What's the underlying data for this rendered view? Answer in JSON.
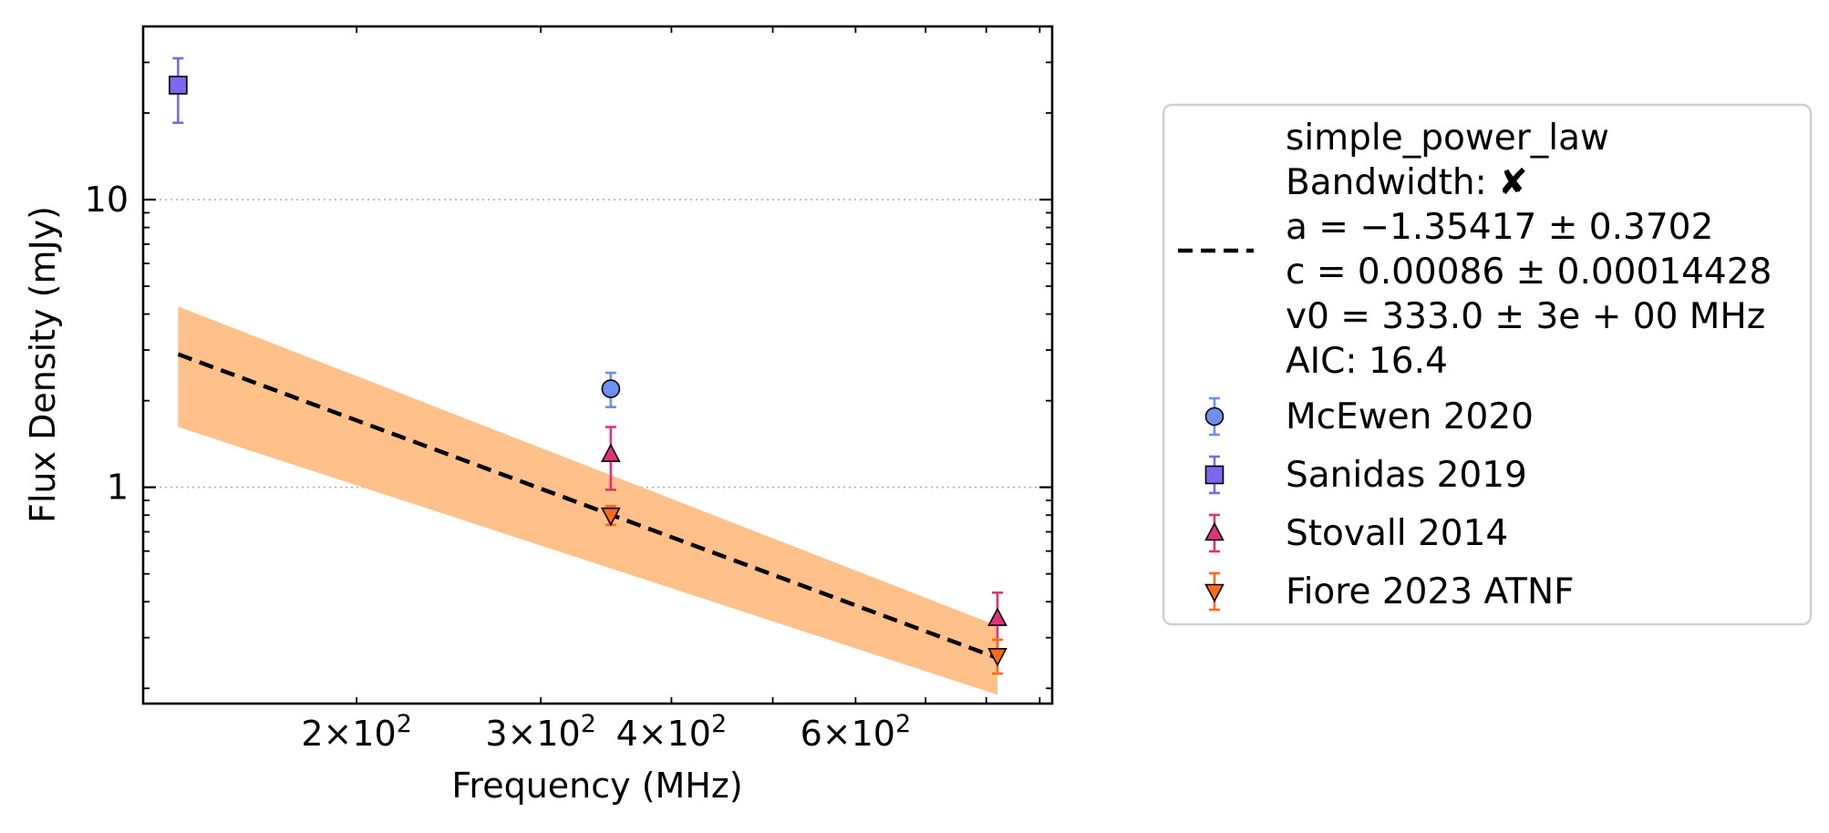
{
  "chart_data": {
    "type": "scatter",
    "title": "",
    "xlabel": "Frequency (MHz)",
    "ylabel": "Flux Density (mJy)",
    "xscale": "log",
    "yscale": "log",
    "xlim": [
      125,
      925
    ],
    "ylim": [
      0.177,
      40
    ],
    "grid": "y-major dotted",
    "legend_placement": "outside right",
    "x_ticks": [
      {
        "value": 200,
        "mant": "2",
        "exp": "2"
      },
      {
        "value": 300,
        "mant": "3",
        "exp": "2"
      },
      {
        "value": 400,
        "mant": "4",
        "exp": "2"
      },
      {
        "value": 600,
        "mant": "6",
        "exp": "2"
      }
    ],
    "y_ticks": [
      {
        "value": 1,
        "label": "1"
      },
      {
        "value": 10,
        "label": "10"
      }
    ],
    "fit": {
      "name": "simple_power_law",
      "legend_lines": [
        "simple_power_law",
        "Bandwidth: ✘",
        "a = −1.35417 ± 0.3702",
        "c = 0.00086 ± 0.00014428",
        "v0 = 333.0 ± 3e + 00 MHz",
        "AIC: 16.4"
      ],
      "x": [
        135,
        820
      ],
      "y": [
        2.9,
        0.255
      ],
      "band_lower": [
        1.62,
        0.19
      ],
      "band_upper": [
        4.25,
        0.33
      ],
      "color": "#000000",
      "band_color": "#ffc08a"
    },
    "series": [
      {
        "name": "McEwen 2020",
        "marker": "circle",
        "color": "#6f8ff0",
        "bar_color": "#6f8ff0",
        "points": [
          {
            "x": 350,
            "y": 2.2,
            "lo": 1.9,
            "hi": 2.5
          }
        ]
      },
      {
        "name": "Sanidas 2019",
        "marker": "square",
        "color": "#7b68ee",
        "bar_color": "#7b68ee",
        "points": [
          {
            "x": 135,
            "y": 25,
            "lo": 18.5,
            "hi": 31
          }
        ]
      },
      {
        "name": "Stovall 2014",
        "marker": "triangle-up",
        "color": "#e0327a",
        "bar_color": "#e0327a",
        "points": [
          {
            "x": 350,
            "y": 1.3,
            "lo": 0.98,
            "hi": 1.62
          },
          {
            "x": 820,
            "y": 0.35,
            "lo": 0.27,
            "hi": 0.43
          }
        ]
      },
      {
        "name": "Fiore 2023 ATNF",
        "marker": "triangle-down",
        "color": "#ff6a1a",
        "bar_color": "#ff6a1a",
        "points": [
          {
            "x": 350,
            "y": 0.8,
            "lo": 0.74,
            "hi": 0.86
          },
          {
            "x": 820,
            "y": 0.26,
            "lo": 0.225,
            "hi": 0.295
          }
        ]
      }
    ]
  }
}
